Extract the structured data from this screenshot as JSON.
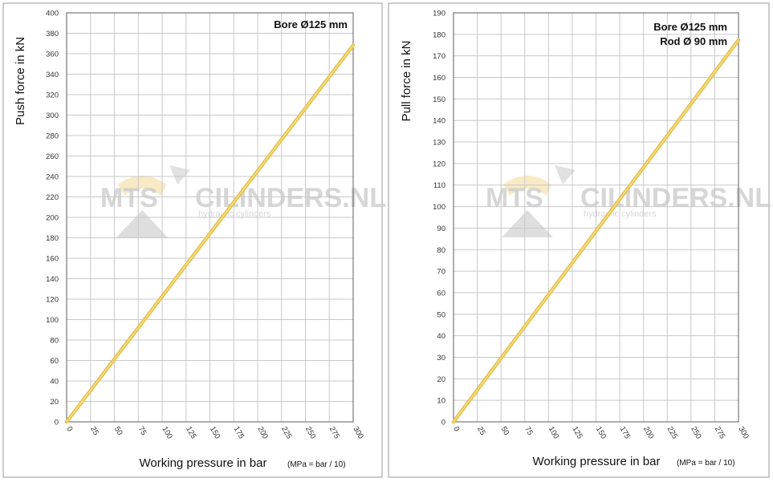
{
  "chart_data": [
    {
      "type": "line",
      "title": "",
      "ylabel": "Push force  in kN",
      "xlabel": "Working pressure in bar",
      "unit_note": "(MPa = bar / 10)",
      "annotations": [
        "Bore Ø125 mm"
      ],
      "xlim": [
        0,
        300
      ],
      "ylim": [
        0,
        400
      ],
      "x_ticks": [
        0,
        25,
        50,
        75,
        100,
        125,
        150,
        175,
        200,
        225,
        250,
        275,
        300
      ],
      "y_ticks": [
        0,
        20,
        40,
        60,
        80,
        100,
        120,
        140,
        160,
        180,
        200,
        220,
        240,
        260,
        280,
        300,
        320,
        340,
        360,
        380,
        400
      ],
      "grid": true,
      "series": [
        {
          "x": [
            0,
            300
          ],
          "y": [
            0,
            368.2
          ]
        }
      ]
    },
    {
      "type": "line",
      "title": "",
      "ylabel": "Pull force in kN",
      "xlabel": "Working pressure in bar",
      "unit_note": "(MPa = bar / 10)",
      "annotations": [
        "Bore Ø125 mm",
        "Rod  Ø  90 mm"
      ],
      "xlim": [
        0,
        300
      ],
      "ylim": [
        0,
        190
      ],
      "x_ticks": [
        0,
        25,
        50,
        75,
        100,
        125,
        150,
        175,
        200,
        225,
        250,
        275,
        300
      ],
      "y_ticks": [
        0,
        10,
        20,
        30,
        40,
        50,
        60,
        70,
        80,
        90,
        100,
        110,
        120,
        130,
        140,
        150,
        160,
        170,
        180,
        190
      ],
      "grid": true,
      "series": [
        {
          "x": [
            0,
            300
          ],
          "y": [
            0,
            177.3
          ]
        }
      ]
    }
  ],
  "watermark": {
    "brand_left": "MTS",
    "brand_right": "CILINDERS.NL",
    "tagline": "hydraulic cylinders"
  },
  "colors": {
    "line": "#e6c24a",
    "line_highlight": "#f3de8f",
    "grid": "#c8c8c8",
    "frame": "#777777",
    "panel_border": "#9a9a9a"
  }
}
